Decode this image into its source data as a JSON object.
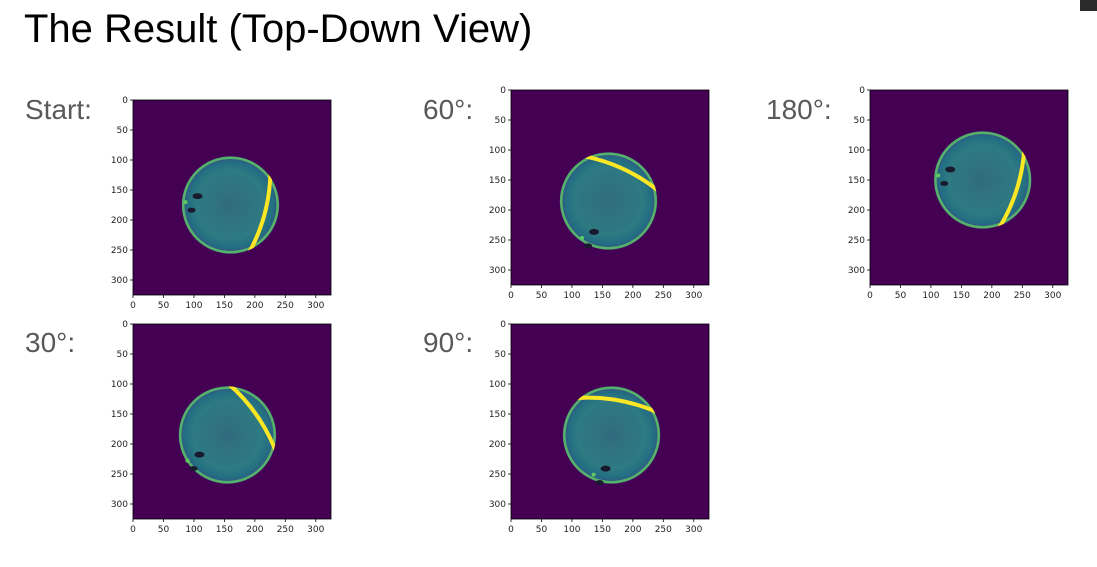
{
  "title": "The Result (Top-Down View)",
  "colors": {
    "background": "#440154",
    "ring_mid": "#2a8f8b",
    "bright": "#fde725",
    "accent_green": "#5ec962"
  },
  "panels": [
    {
      "id": "start",
      "label": "Start:",
      "stripe_angle_deg": 15
    },
    {
      "id": "60",
      "label": "60°:",
      "stripe_angle_deg": -65
    },
    {
      "id": "180",
      "label": "180°:",
      "stripe_angle_deg": 18
    },
    {
      "id": "30",
      "label": "30°:",
      "stripe_angle_deg": -35
    },
    {
      "id": "90",
      "label": "90°:",
      "stripe_angle_deg": -80
    }
  ],
  "chart_data": [
    {
      "type": "heatmap",
      "title": "Start:",
      "xlim": [
        0,
        325
      ],
      "ylim": [
        325,
        0
      ],
      "xticks": [
        0,
        50,
        100,
        150,
        200,
        250,
        300
      ],
      "yticks": [
        0,
        50,
        100,
        150,
        200,
        250,
        300
      ],
      "ball_center": [
        160,
        175
      ],
      "ball_radius": 80
    },
    {
      "type": "heatmap",
      "title": "60°:",
      "xlim": [
        0,
        325
      ],
      "ylim": [
        325,
        0
      ],
      "xticks": [
        0,
        50,
        100,
        150,
        200,
        250,
        300
      ],
      "yticks": [
        0,
        50,
        100,
        150,
        200,
        250,
        300
      ],
      "ball_center": [
        160,
        185
      ],
      "ball_radius": 80
    },
    {
      "type": "heatmap",
      "title": "180°:",
      "xlim": [
        0,
        325
      ],
      "ylim": [
        325,
        0
      ],
      "xticks": [
        0,
        50,
        100,
        150,
        200,
        250,
        300
      ],
      "yticks": [
        0,
        50,
        100,
        150,
        200,
        250,
        300
      ],
      "ball_center": [
        185,
        150
      ],
      "ball_radius": 80
    },
    {
      "type": "heatmap",
      "title": "30°:",
      "xlim": [
        0,
        325
      ],
      "ylim": [
        325,
        0
      ],
      "xticks": [
        0,
        50,
        100,
        150,
        200,
        250,
        300
      ],
      "yticks": [
        0,
        50,
        100,
        150,
        200,
        250,
        300
      ],
      "ball_center": [
        155,
        185
      ],
      "ball_radius": 80
    },
    {
      "type": "heatmap",
      "title": "90°:",
      "xlim": [
        0,
        325
      ],
      "ylim": [
        325,
        0
      ],
      "xticks": [
        0,
        50,
        100,
        150,
        200,
        250,
        300
      ],
      "yticks": [
        0,
        50,
        100,
        150,
        200,
        250,
        300
      ],
      "ball_center": [
        165,
        185
      ],
      "ball_radius": 80
    }
  ]
}
